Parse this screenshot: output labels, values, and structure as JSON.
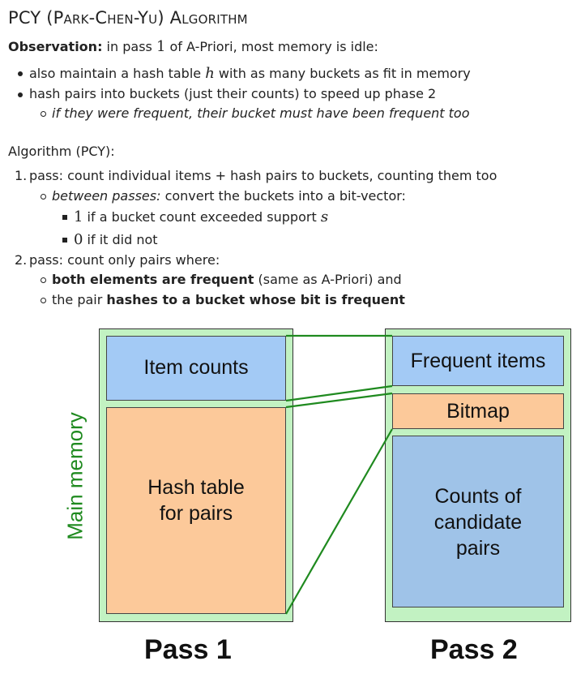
{
  "title": {
    "prefix": "PCY (",
    "name": "Park-Chen-Yu",
    "suffix": ") Algorithm"
  },
  "observation": {
    "label": "Observation:",
    "text_before": " in pass ",
    "pass_number": "1",
    "text_after": " of A-Priori, most memory is idle:",
    "bullets": [
      {
        "before": "also maintain a hash table ",
        "math": "h",
        "after": " with as many buckets as fit in memory"
      },
      {
        "text": "hash pairs into buckets (just their counts) to speed up phase 2"
      }
    ],
    "sub_bullet": "if they were frequent, their bucket must have been frequent too"
  },
  "algorithm": {
    "label": "Algorithm (PCY):",
    "steps": [
      {
        "number": "1.",
        "text": "pass: count individual items + hash pairs to buckets, counting them too",
        "sub": {
          "italic": "between passes:",
          "text": " convert the buckets into a bit-vector:",
          "items": [
            {
              "math": "1",
              "text": " if a bucket count exceeded support ",
              "math2": "s"
            },
            {
              "math": "0",
              "text": " if it did not"
            }
          ]
        }
      },
      {
        "number": "2.",
        "text": "pass: count only pairs where:",
        "subs": [
          {
            "bold": "both elements are frequent",
            "text": " (same as A-Priori) and"
          },
          {
            "text": "the pair ",
            "bold": "hashes to a bucket whose bit is frequent"
          }
        ]
      }
    ]
  },
  "diagram": {
    "side_label": "Main memory",
    "pass1": {
      "label": "Pass 1",
      "item_counts": "Item counts",
      "hash_table_line1": "Hash table",
      "hash_table_line2": "for pairs"
    },
    "pass2": {
      "label": "Pass 2",
      "frequent_items": "Frequent items",
      "bitmap": "Bitmap",
      "counts_line1": "Counts of",
      "counts_line2": "candidate",
      "counts_line3": "pairs"
    },
    "colors": {
      "memory": "#c2f2c2",
      "item_counts": "#a3caf5",
      "hash_table": "#fcc99a",
      "candidate_counts": "#9fc3e8",
      "connector": "#1f8a1f"
    }
  }
}
